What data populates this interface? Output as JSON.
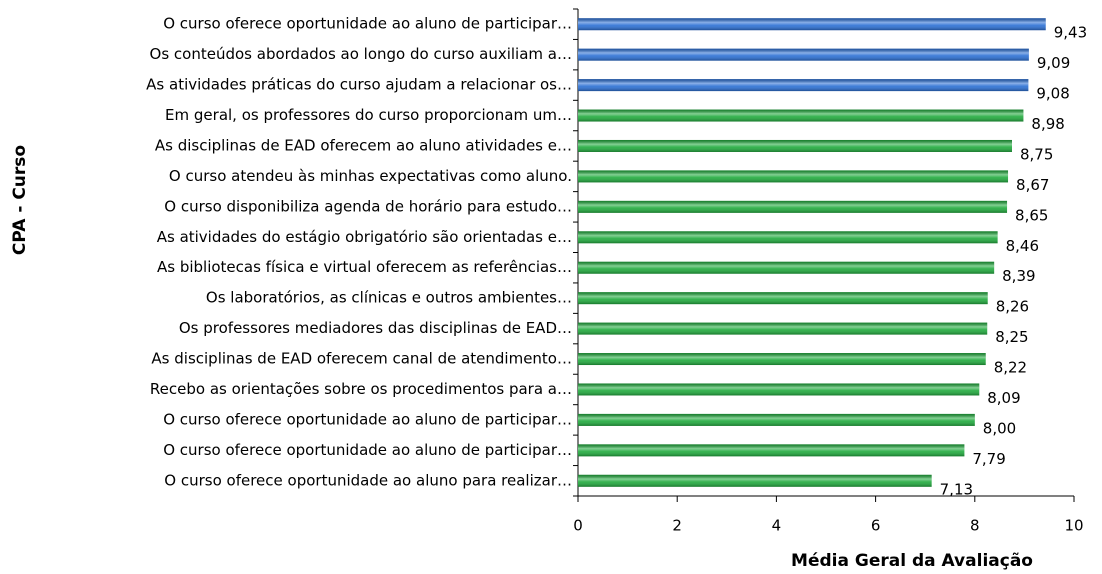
{
  "chart_data": {
    "type": "bar",
    "orientation": "horizontal",
    "xlabel": "Média Geral da Avaliação",
    "ylabel": "CPA - Curso",
    "categories": [
      "O curso oferece oportunidade ao aluno de participar…",
      "Os conteúdos abordados ao longo do curso auxiliam a…",
      "As atividades práticas do curso ajudam a relacionar os…",
      "Em geral, os professores do curso proporcionam um…",
      "As disciplinas de EAD oferecem ao aluno atividades e…",
      "O curso atendeu às minhas expectativas como aluno.",
      "O curso disponibiliza agenda de horário para estudo…",
      "As atividades do estágio obrigatório são orientadas e…",
      "As bibliotecas física e virtual oferecem as referências…",
      "Os laboratórios, as clínicas e outros ambientes…",
      "Os professores mediadores das disciplinas de EAD…",
      "As disciplinas de EAD oferecem canal de atendimento…",
      "Recebo as orientações sobre os procedimentos para a…",
      "O curso oferece oportunidade ao aluno de participar…",
      "O curso oferece oportunidade ao aluno de participar…",
      "O curso oferece oportunidade ao aluno para realizar…"
    ],
    "values": [
      9.43,
      9.09,
      9.08,
      8.98,
      8.75,
      8.67,
      8.65,
      8.46,
      8.39,
      8.26,
      8.25,
      8.22,
      8.09,
      8.0,
      7.79,
      7.13
    ],
    "value_labels": [
      "9,43",
      "9,09",
      "9,08",
      "8,98",
      "8,75",
      "8,67",
      "8,65",
      "8,46",
      "8,39",
      "8,26",
      "8,25",
      "8,22",
      "8,09",
      "8,00",
      "7,79",
      "7,13"
    ],
    "colors": [
      "#2a6fd4",
      "#2a6fd4",
      "#2a6fd4",
      "#1faa3c",
      "#1faa3c",
      "#1faa3c",
      "#1faa3c",
      "#1faa3c",
      "#1faa3c",
      "#1faa3c",
      "#1faa3c",
      "#1faa3c",
      "#1faa3c",
      "#1faa3c",
      "#1faa3c",
      "#1faa3c"
    ],
    "xlim": [
      0,
      10
    ],
    "xticks": [
      0,
      2,
      4,
      6,
      8,
      10
    ],
    "grid": false
  }
}
